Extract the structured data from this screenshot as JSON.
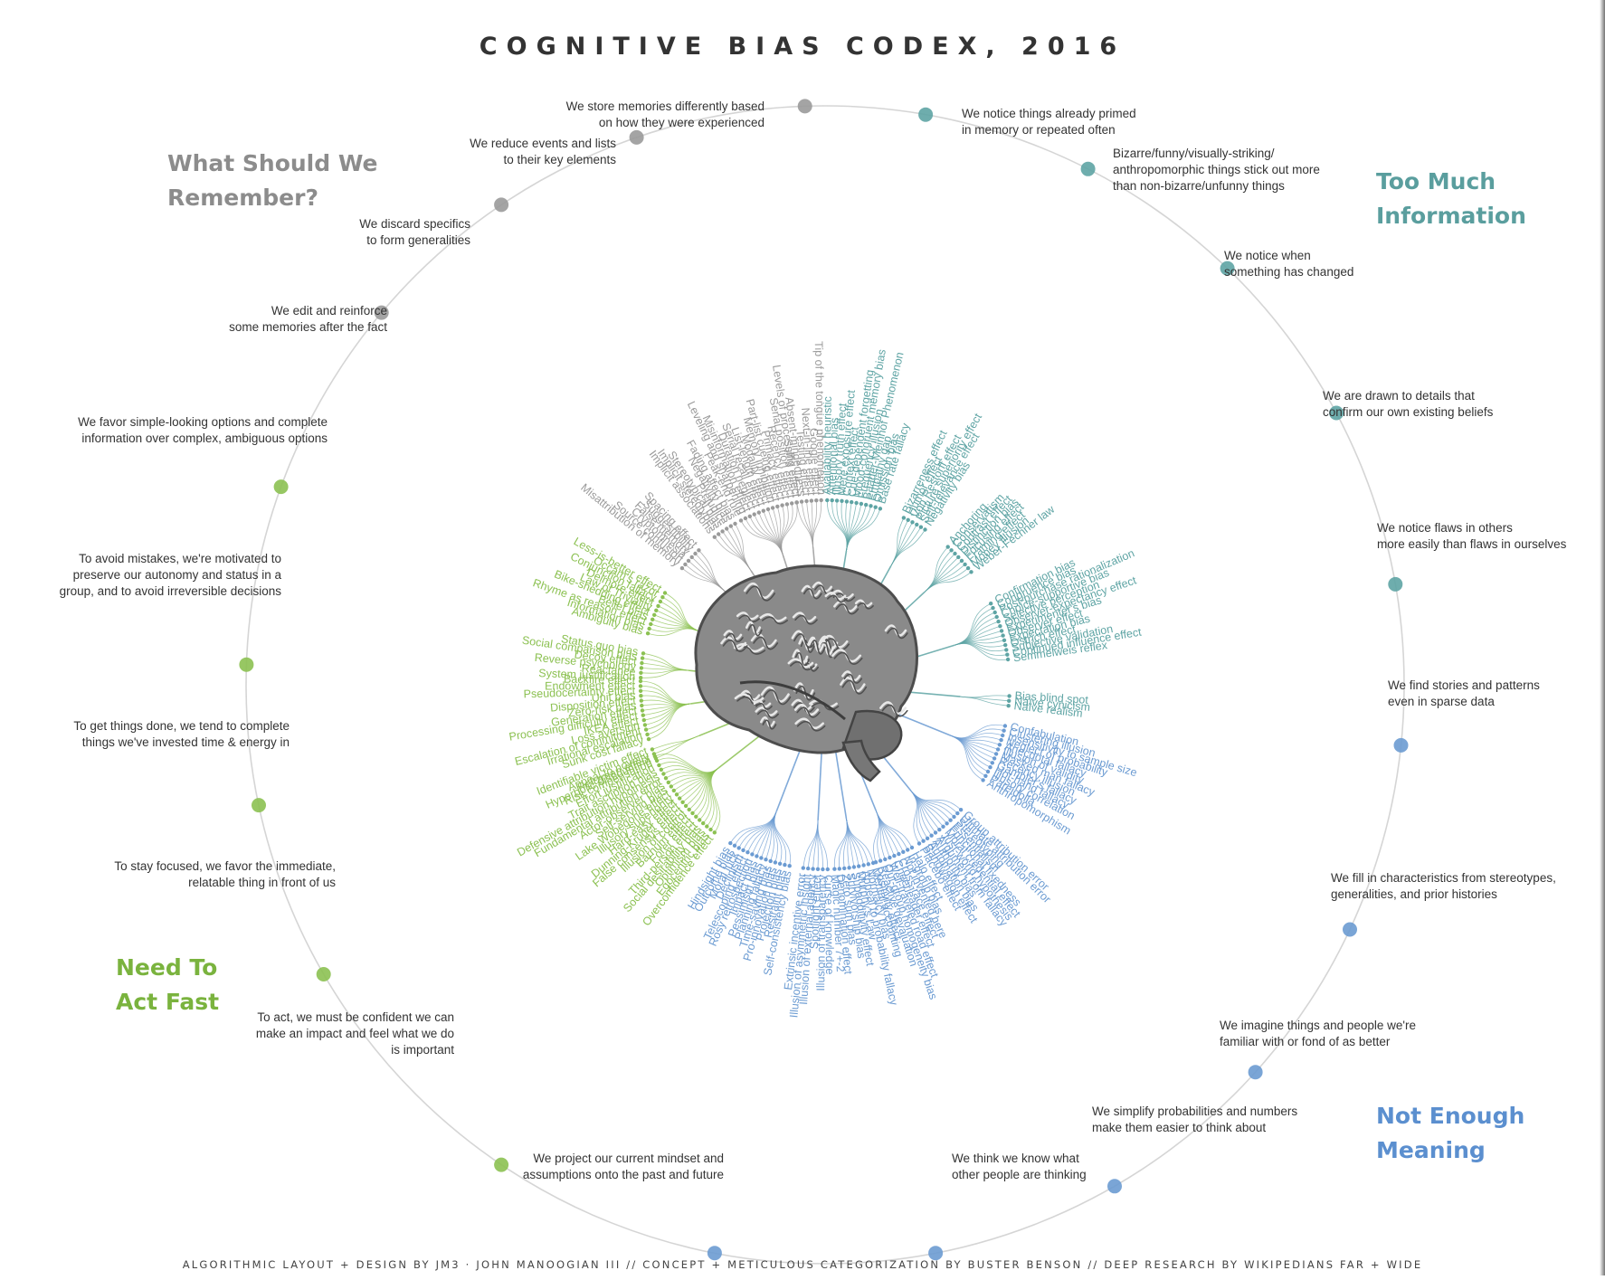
{
  "title": "COGNITIVE BIAS CODEX, 2016",
  "footer": "ALGORITHMIC LAYOUT + DESIGN BY JM3 · JOHN MANOOGIAN III // CONCEPT + METICULOUS CATEGORIZATION BY BUSTER BENSON // DEEP RESEARCH BY WIKIPEDIANS FAR + WIDE",
  "colors": {
    "grey": "#9a9a9a",
    "teal": "#5ea4a4",
    "blue": "#6b9bd2",
    "green": "#8cc152",
    "text": "#333333",
    "ring": "#d5d5d5"
  },
  "categories": [
    {
      "id": "remember",
      "lines": [
        "What Should We",
        "Remember?"
      ],
      "color": "#8c8c8c"
    },
    {
      "id": "too_much",
      "lines": [
        "Too Much",
        "Information"
      ],
      "color": "#5a9e9e"
    },
    {
      "id": "meaning",
      "lines": [
        "Not Enough",
        "Meaning"
      ],
      "color": "#5b8fcf"
    },
    {
      "id": "act_fast",
      "lines": [
        "Need To",
        "Act Fast"
      ],
      "color": "#7ab33e"
    }
  ],
  "groups": [
    {
      "id": "g1",
      "color": "#5ea4a4",
      "label": [
        "We notice things already primed",
        "in memory or repeated often"
      ],
      "items": [
        "Availability heuristic",
        "Attentional bias",
        "Illusory truth effect",
        "Mere exposure effect",
        "Context effect",
        "Cue-dependent forgetting",
        "Mood-congruent memory bias",
        "Frequency illusion",
        "Baader-Meinhof Phenomenon",
        "Empathy gap",
        "Omission bias",
        "Base rate fallacy"
      ]
    },
    {
      "id": "g2",
      "color": "#5ea4a4",
      "label": [
        "Bizarre/funny/visually-striking/",
        "anthropomorphic things stick out more",
        "than non-bizarre/unfunny things"
      ],
      "items": [
        "Bizarreness effect",
        "Humor effect",
        "Von Restorff effect",
        "Picture superiority effect",
        "Self-relevance effect",
        "Negativity bias"
      ]
    },
    {
      "id": "g3",
      "color": "#5ea4a4",
      "label": [
        "We notice when",
        "something has changed"
      ],
      "items": [
        "Anchoring",
        "Conservatism",
        "Contrast effect",
        "Distinction bias",
        "Focusing effect",
        "Framing effect",
        "Money illusion",
        "Weber-Fechner law"
      ]
    },
    {
      "id": "g4",
      "color": "#5ea4a4",
      "label": [
        "We are drawn to details that",
        "confirm our own existing beliefs"
      ],
      "items": [
        "Confirmation bias",
        "Congruence bias",
        "Post-purchase rationalization",
        "Choice-supportive bias",
        "Selective perception",
        "Observer-expectancy effect",
        "Experimenter's bias",
        "Observer effect",
        "Expectation bias",
        "Ostrich effect",
        "Subjective validation",
        "Continued influence effect",
        "Semmelweis reflex"
      ]
    },
    {
      "id": "g5",
      "color": "#5ea4a4",
      "label": [
        "We notice flaws in others",
        "more easily than flaws in ourselves"
      ],
      "items": [
        "Bias blind spot",
        "Naïve cynicism",
        "Naïve realism"
      ]
    },
    {
      "id": "g6",
      "color": "#6b9bd2",
      "label": [
        "We find stories and patterns",
        "even in sparse data"
      ],
      "items": [
        "Confabulation",
        "Clustering illusion",
        "Insensitivity to sample size",
        "Neglect of probability",
        "Anecdotal fallacy",
        "Illusion of validity",
        "Masked man fallacy",
        "Recency illusion",
        "Gambler's fallacy",
        "Hot-hand fallacy",
        "Illusory correlation",
        "Pareidolia",
        "Anthropomorphism"
      ]
    },
    {
      "id": "g7",
      "color": "#6b9bd2",
      "label": [
        "We fill in characteristics from stereotypes,",
        "generalities, and prior histories"
      ],
      "items": [
        "Group attribution error",
        "Ultimate attribution error",
        "Stereotyping",
        "Essentialism",
        "Functional fixedness",
        "Moral credential effect",
        "Just-world hypothesis",
        "Argument from fallacy",
        "Authority bias",
        "Automation bias",
        "Bandwagon effect",
        "Placebo effect"
      ]
    },
    {
      "id": "g8",
      "color": "#6b9bd2",
      "label": [
        "We imagine things and people we're",
        "familiar with or fond of as better"
      ],
      "items": [
        "Halo effect",
        "In-group bias",
        "Not invented here",
        "Cross-race effect",
        "Cheerleader effect",
        "Well-traveled road effect",
        "Out-group homogeneity bias",
        "Reactive devaluation",
        "Positivity effect"
      ]
    },
    {
      "id": "g9",
      "color": "#6b9bd2",
      "label": [
        "We simplify probabilities and numbers",
        "make them easier to think about"
      ],
      "items": [
        "Mental accounting",
        "Normalcy bias",
        "Appeal to probability fallacy",
        "Murphy's Law",
        "Subadditivity effect",
        "Survivorship bias",
        "Zero sum bias",
        "Denomination effect",
        "Magic number 7+-2"
      ]
    },
    {
      "id": "g10",
      "color": "#6b9bd2",
      "label": [
        "We think we know what",
        "other people are thinking"
      ],
      "items": [
        "Curse of knowledge",
        "Illusion of transparency",
        "Spotlight effect",
        "Illusion of external agency",
        "Illusion of asymmetric insight",
        "Extrinsic incentive error"
      ]
    },
    {
      "id": "g11",
      "color": "#6b9bd2",
      "label": [
        "We project our current mindset and",
        "assumptions onto the past and future"
      ],
      "items": [
        "Self-consistency bias",
        "Restraint bias",
        "Projection bias",
        "Pro-innovation bias",
        "Time-saving bias",
        "Planning fallacy",
        "Pessimism bias",
        "Impact bias",
        "Rosy retrospection",
        "Telescoping effect",
        "Declinism",
        "Moral luck",
        "Outcome bias",
        "Hindsight bias"
      ]
    },
    {
      "id": "g12",
      "color": "#8cc152",
      "label": [
        "To act, we must be confident we can",
        "make an impact and feel what we do",
        "is important"
      ],
      "items": [
        "Overconfidence effect",
        "Egocentric bias",
        "Optimism bias",
        "Social desirability bias",
        "Third-person effect",
        "Forer effect",
        "Barnum effect",
        "Illusion of control",
        "False consensus effect",
        "Dunning-Kruger effect",
        "Hard-easy effect",
        "Illusory superiority",
        "Lake Wobegone effect",
        "Self-serving bias",
        "Actor-observer bias",
        "Fundamental attribution error",
        "Defensive attribution hypothesis",
        "Trait ascription bias",
        "Effort justification",
        "Risk compensation",
        "Peltzman effect"
      ]
    },
    {
      "id": "g13",
      "color": "#8cc152",
      "label": [
        "To stay focused, we favor the immediate,",
        "relatable thing in front of us"
      ],
      "items": [
        "Hyperbolic discounting",
        "Appeal to novelty",
        "Identifiable victim effect"
      ]
    },
    {
      "id": "g14",
      "color": "#8cc152",
      "label": [
        "To get things done, we tend to complete",
        "things we've invested time & energy in"
      ],
      "items": [
        "Sunk cost fallacy",
        "Irrational escalation",
        "Escalation of commitment",
        "Loss aversion",
        "IKEA effect",
        "Processing difficulty effect",
        "Generation effect",
        "Zero-risk bias",
        "Disposition effect",
        "Unit bias",
        "Pseudocertainty effect",
        "Endowment effect",
        "Backfire effect"
      ]
    },
    {
      "id": "g15",
      "color": "#8cc152",
      "label": [
        "To avoid mistakes, we're motivated to",
        "preserve our autonomy and status in a",
        "group, and to avoid irreversible decisions"
      ],
      "items": [
        "System justification",
        "Reactance",
        "Reverse psychology",
        "Decoy effect",
        "Social comparison bias",
        "Status quo bias"
      ]
    },
    {
      "id": "g16",
      "color": "#8cc152",
      "label": [
        "We favor simple-looking options and complete",
        "information over complex, ambiguous options"
      ],
      "items": [
        "Ambiguity bias",
        "Information bias",
        "Rhyme as reason effect",
        "Belief bias",
        "Bike-shedding effect",
        "Law of Triviality",
        "Delmore effect",
        "Conjunction fallacy",
        "Occam's razor",
        "Less-is-better effect"
      ]
    },
    {
      "id": "g17",
      "color": "#9a9a9a",
      "label": [
        "We edit and reinforce",
        "some memories after the fact"
      ],
      "items": [
        "Misattribution of memory",
        "Source confusion",
        "Cryptomnesia",
        "False memory",
        "Suggestibility",
        "Spacing effect"
      ]
    },
    {
      "id": "g18",
      "color": "#9a9a9a",
      "label": [
        "We discard specifics",
        "to form generalities"
      ],
      "items": [
        "Implicit associations",
        "Implicit stereotypes",
        "Stereotypical bias",
        "Prejudice",
        "Negativity bias",
        "Fading affect bias"
      ]
    },
    {
      "id": "g19",
      "color": "#9a9a9a",
      "label": [
        "We reduce events and lists",
        "to their key elements"
      ],
      "items": [
        "Peak-end rule",
        "Leveling and sharpening",
        "Misinformation effect",
        "Duration neglect",
        "Serial recall effect",
        "List-length effect",
        "Modality effect",
        "Memory inhibition",
        "Part-list cueing effect",
        "Primacy effect",
        "Recency effect",
        "Serial position effect",
        "Suffix effect"
      ]
    },
    {
      "id": "g20",
      "color": "#9a9a9a",
      "label": [
        "We store memories differently based",
        "on how they were experienced"
      ],
      "items": [
        "Levels of processing effect",
        "Absent-mindedness",
        "Testing effect",
        "Next-in-line effect",
        "Google effect",
        "Tip of the tongue phenomenon"
      ]
    }
  ]
}
